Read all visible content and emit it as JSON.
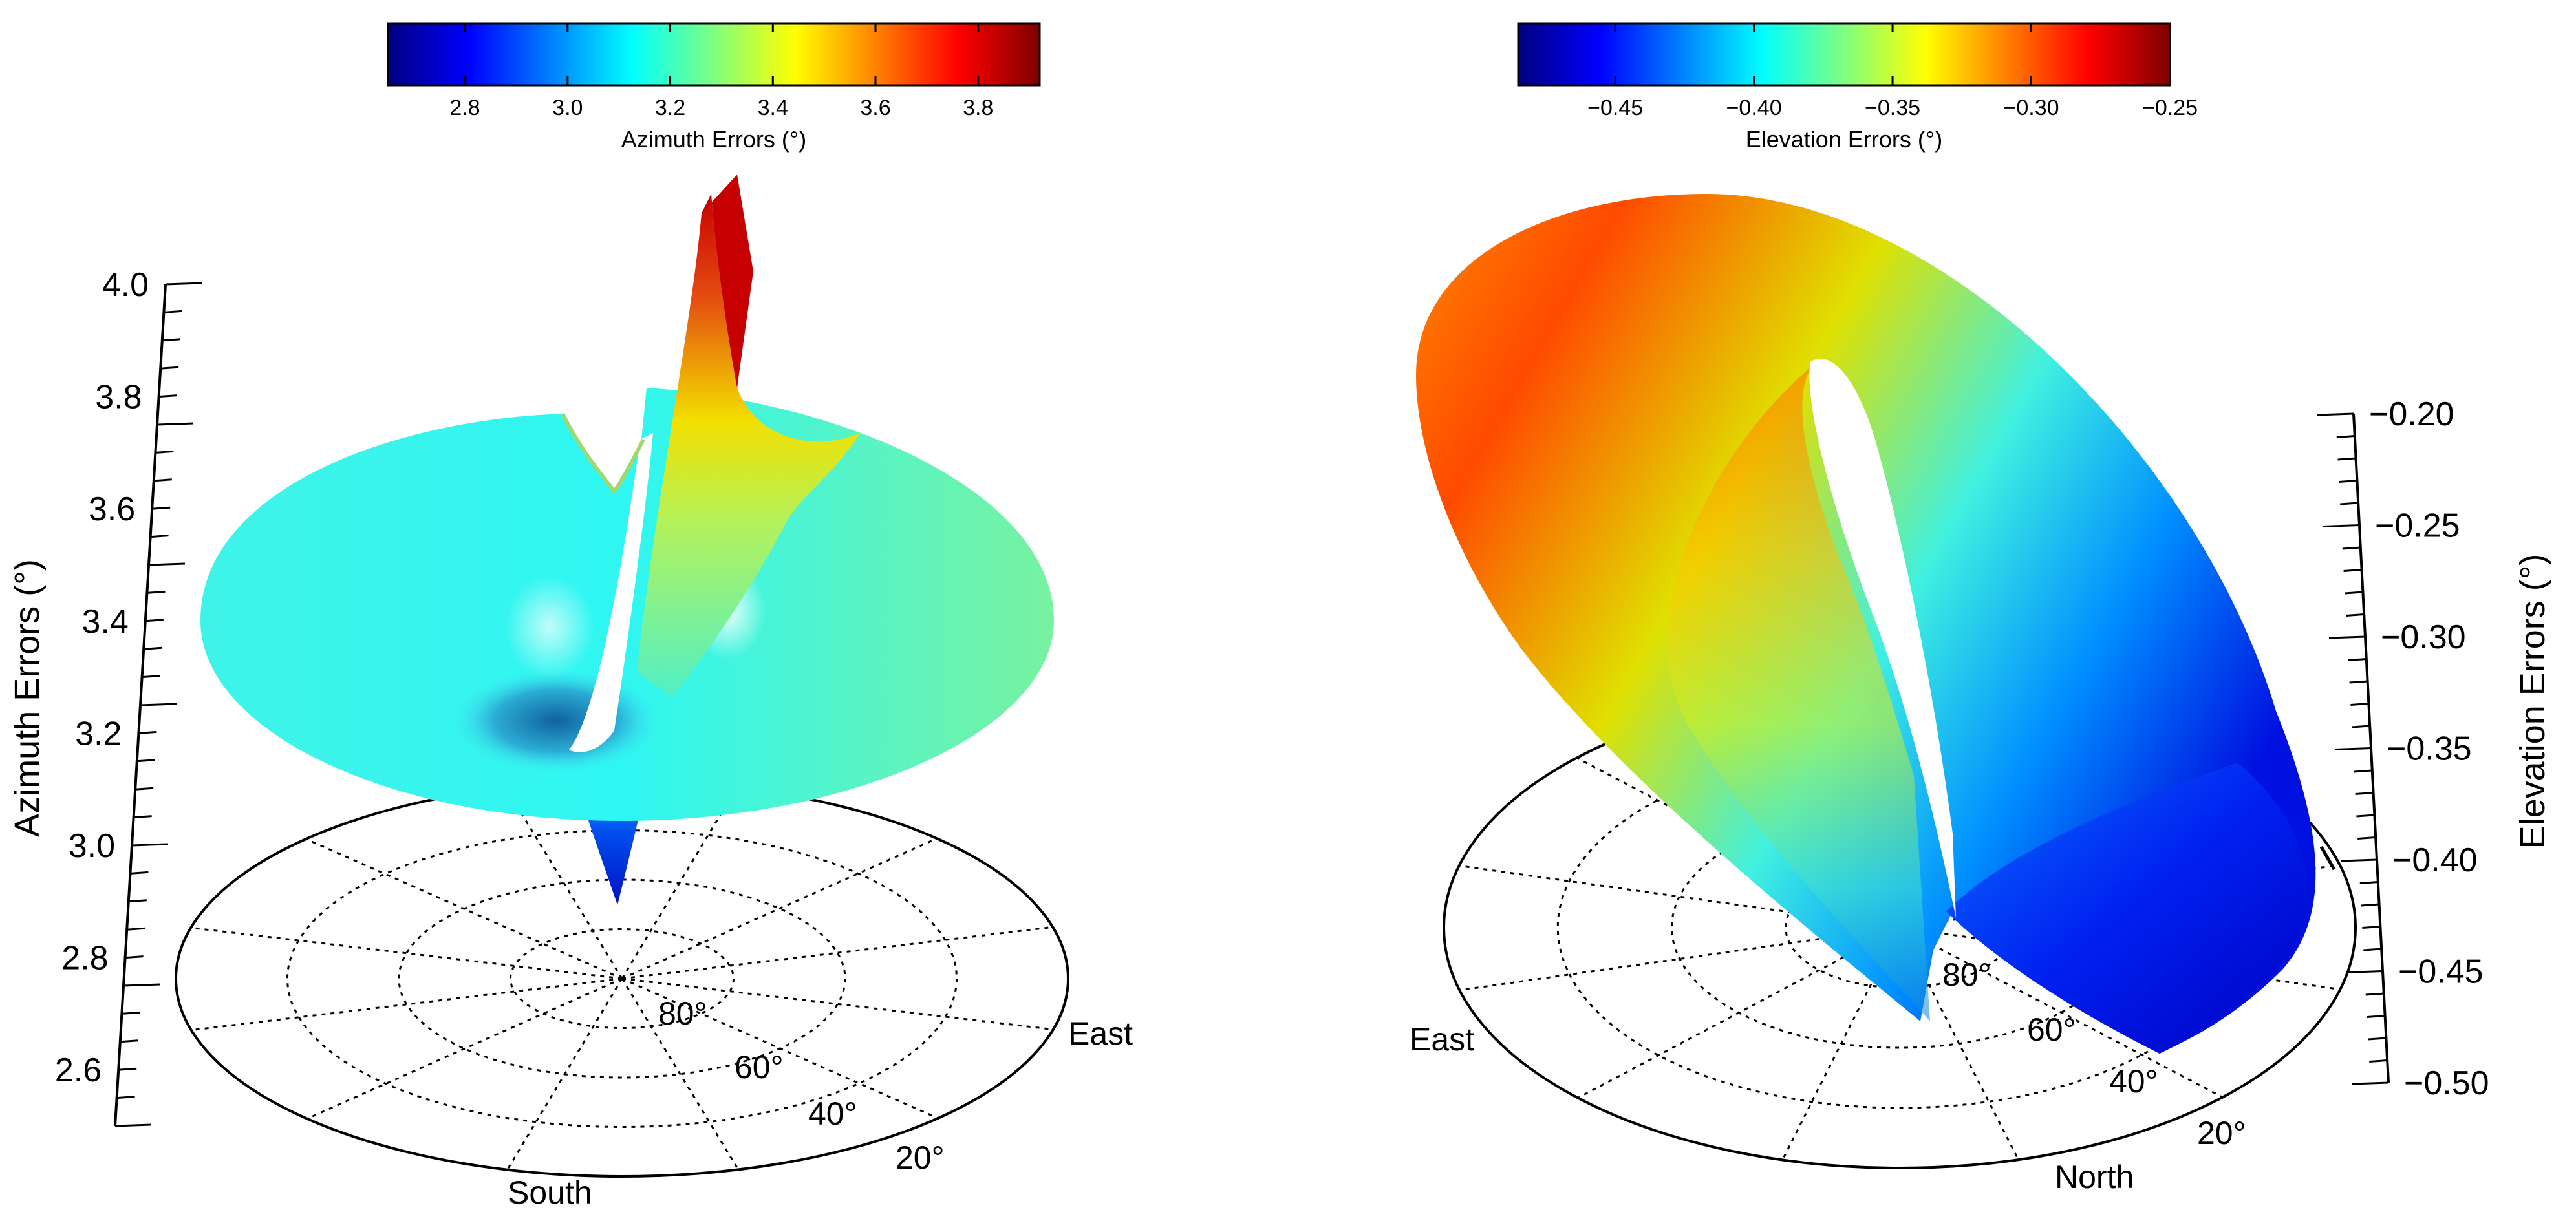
{
  "chart_data": [
    {
      "type": "surface3d",
      "colorbar": {
        "title": "Azimuth Errors (°)",
        "ticks": [
          "2.8",
          "3.0",
          "3.2",
          "3.4",
          "3.6",
          "3.8"
        ],
        "range": [
          2.65,
          3.92
        ],
        "colormap": "jet"
      },
      "z_axis": {
        "label": "Azimuth Errors (°)",
        "ticks": [
          "2.6",
          "2.8",
          "3.0",
          "3.2",
          "3.4",
          "3.6",
          "3.8",
          "4.0"
        ],
        "range": [
          2.5,
          4.0
        ]
      },
      "polar_base": {
        "elevation_labels": [
          "80°",
          "60°",
          "40°",
          "20°"
        ],
        "direction_labels": [
          "South",
          "East"
        ],
        "rings_per_label": 4,
        "radial_lines": 12
      }
    },
    {
      "type": "surface3d",
      "colorbar": {
        "title": "Elevation Errors (°)",
        "ticks": [
          "−0.45",
          "−0.40",
          "−0.35",
          "−0.30",
          "−0.25"
        ],
        "range": [
          -0.485,
          -0.25
        ],
        "colormap": "jet"
      },
      "z_axis": {
        "label": "Elevation Errors (°)",
        "ticks": [
          "−0.20",
          "−0.25",
          "−0.30",
          "−0.35",
          "−0.40",
          "−0.45",
          "−0.50"
        ],
        "range": [
          -0.5,
          -0.2
        ]
      },
      "polar_base": {
        "elevation_labels": [
          "80°",
          "60°",
          "40°",
          "20°"
        ],
        "direction_labels": [
          "East",
          "North"
        ],
        "rings_per_label": 4,
        "radial_lines": 12
      }
    }
  ],
  "colors": {
    "jet": [
      "#00007f",
      "#0000ff",
      "#007fff",
      "#00ffff",
      "#7fff7f",
      "#ffff00",
      "#ff7f00",
      "#ff0000",
      "#7f0000"
    ]
  }
}
